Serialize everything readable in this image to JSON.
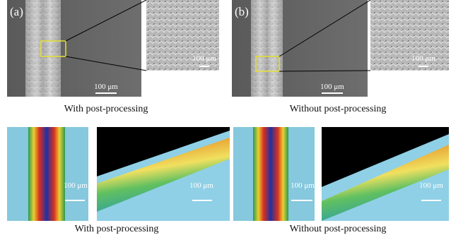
{
  "top_row": {
    "panels": [
      {
        "label": "(a)",
        "scale_bars": [
          "100 μm",
          "100 μm"
        ],
        "caption": "With post-processing"
      },
      {
        "label": "(b)",
        "scale_bars": [
          "100 μm",
          "100 μm"
        ],
        "caption": "Without post-processing"
      }
    ]
  },
  "bottom_row": {
    "panels": [
      {
        "scale_bars": [
          "100 μm",
          "100 μm"
        ],
        "caption": "With post-processing"
      },
      {
        "scale_bars": [
          "100 μm",
          "100 μm"
        ],
        "caption": "Without post-processing"
      }
    ]
  }
}
